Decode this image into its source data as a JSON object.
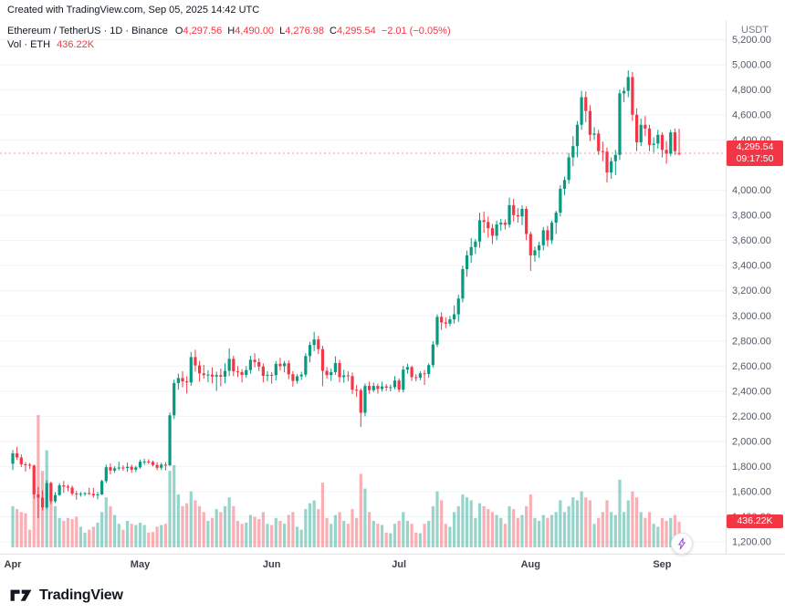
{
  "attribution": "Created with TradingView.com, Sep 05, 2025 14:42 UTC",
  "legend": {
    "title": "Ethereum / TetherUS · 1D · Binance",
    "o_label": "O",
    "o": "4,297.56",
    "h_label": "H",
    "h": "4,490.00",
    "l_label": "L",
    "l": "4,276.98",
    "c_label": "C",
    "c": "4,295.54",
    "change": "−2.01 (−0.05%)",
    "vol_label": "Vol · ETH",
    "vol_value": "436.22K"
  },
  "axis": {
    "currency": "USDT"
  },
  "badges": {
    "price": "4,295.54",
    "countdown": "09:17:50",
    "volume": "436.22K"
  },
  "footer": {
    "brand": "TradingView"
  },
  "colors": {
    "up": "#089981",
    "down": "#F23645",
    "vol_up": "rgba(8,153,129,0.42)",
    "vol_down": "rgba(242,54,69,0.40)"
  },
  "chart_data": {
    "type": "candlestick",
    "symbol": "Ethereum / TetherUS",
    "exchange": "Binance",
    "interval": "1D",
    "ylabel": "USDT",
    "ylim": [
      1150,
      5230
    ],
    "last": {
      "open": 4297.56,
      "high": 4490.0,
      "low": 4276.98,
      "close": 4295.54,
      "change": -2.01,
      "change_pct": -0.05,
      "volume_k": 436.22,
      "countdown": "09:17:50"
    },
    "price_ticks": [
      {
        "v": 5200,
        "label": "5,200.00"
      },
      {
        "v": 5000,
        "label": "5,000.00"
      },
      {
        "v": 4800,
        "label": "4,800.00"
      },
      {
        "v": 4600,
        "label": "4,600.00"
      },
      {
        "v": 4400,
        "label": "4,400.00"
      },
      {
        "v": 4000,
        "label": "4,000.00"
      },
      {
        "v": 3800,
        "label": "3,800.00"
      },
      {
        "v": 3600,
        "label": "3,600.00"
      },
      {
        "v": 3400,
        "label": "3,400.00"
      },
      {
        "v": 3200,
        "label": "3,200.00"
      },
      {
        "v": 3000,
        "label": "3,000.00"
      },
      {
        "v": 2800,
        "label": "2,800.00"
      },
      {
        "v": 2600,
        "label": "2,600.00"
      },
      {
        "v": 2400,
        "label": "2,400.00"
      },
      {
        "v": 2200,
        "label": "2,200.00"
      },
      {
        "v": 2000,
        "label": "2,000.00"
      },
      {
        "v": 1800,
        "label": "1,800.00"
      },
      {
        "v": 1600,
        "label": "1,600.00"
      },
      {
        "v": 1400,
        "label": "1,400.00"
      },
      {
        "v": 1200,
        "label": "1,200.00"
      }
    ],
    "months": [
      {
        "label": "Apr",
        "i": 0
      },
      {
        "label": "May",
        "i": 30
      },
      {
        "label": "Jun",
        "i": 61
      },
      {
        "label": "Jul",
        "i": 91
      },
      {
        "label": "Aug",
        "i": 122
      },
      {
        "label": "Sep",
        "i": 153
      }
    ],
    "volume_unit": "K",
    "candles": [
      [
        "04-01",
        1822,
        1930,
        1772,
        1905,
        700
      ],
      [
        "04-02",
        1905,
        1957,
        1852,
        1872,
        650
      ],
      [
        "04-03",
        1872,
        1898,
        1795,
        1818,
        600
      ],
      [
        "04-04",
        1818,
        1835,
        1760,
        1815,
        580
      ],
      [
        "04-05",
        1815,
        1828,
        1780,
        1808,
        300
      ],
      [
        "04-06",
        1808,
        1815,
        1545,
        1578,
        1200
      ],
      [
        "04-07",
        1578,
        1638,
        1390,
        1552,
        2250
      ],
      [
        "04-08",
        1552,
        1610,
        1452,
        1475,
        1300
      ],
      [
        "04-09",
        1475,
        1690,
        1460,
        1668,
        1650
      ],
      [
        "04-10",
        1668,
        1680,
        1500,
        1523,
        1100
      ],
      [
        "04-11",
        1523,
        1596,
        1510,
        1573,
        700
      ],
      [
        "04-12",
        1573,
        1668,
        1566,
        1650,
        500
      ],
      [
        "04-13",
        1650,
        1685,
        1590,
        1641,
        450
      ],
      [
        "04-14",
        1641,
        1656,
        1602,
        1632,
        500
      ],
      [
        "04-15",
        1632,
        1648,
        1568,
        1584,
        480
      ],
      [
        "04-16",
        1584,
        1605,
        1536,
        1577,
        520
      ],
      [
        "04-17",
        1577,
        1598,
        1560,
        1583,
        350
      ],
      [
        "04-18",
        1583,
        1596,
        1566,
        1588,
        250
      ],
      [
        "04-19",
        1588,
        1632,
        1574,
        1582,
        300
      ],
      [
        "04-20",
        1582,
        1630,
        1552,
        1570,
        350
      ],
      [
        "04-21",
        1570,
        1597,
        1540,
        1578,
        420
      ],
      [
        "04-22",
        1578,
        1695,
        1572,
        1684,
        600
      ],
      [
        "04-23",
        1684,
        1815,
        1668,
        1795,
        850
      ],
      [
        "04-24",
        1795,
        1824,
        1738,
        1768,
        700
      ],
      [
        "04-25",
        1768,
        1802,
        1750,
        1786,
        550
      ],
      [
        "04-26",
        1786,
        1838,
        1770,
        1792,
        400
      ],
      [
        "04-27",
        1792,
        1810,
        1765,
        1788,
        300
      ],
      [
        "04-28",
        1788,
        1832,
        1758,
        1798,
        450
      ],
      [
        "04-29",
        1798,
        1815,
        1750,
        1775,
        400
      ],
      [
        "04-30",
        1775,
        1806,
        1755,
        1793,
        380
      ],
      [
        "05-01",
        1793,
        1855,
        1782,
        1838,
        420
      ],
      [
        "05-02",
        1838,
        1862,
        1815,
        1840,
        380
      ],
      [
        "05-03",
        1840,
        1858,
        1820,
        1836,
        250
      ],
      [
        "05-04",
        1836,
        1848,
        1800,
        1812,
        260
      ],
      [
        "05-05",
        1812,
        1834,
        1770,
        1790,
        350
      ],
      [
        "05-06",
        1790,
        1830,
        1772,
        1815,
        380
      ],
      [
        "05-07",
        1815,
        1836,
        1768,
        1810,
        400
      ],
      [
        "05-08",
        1810,
        2230,
        1802,
        2208,
        1300
      ],
      [
        "05-09",
        2208,
        2492,
        2180,
        2465,
        1400
      ],
      [
        "05-10",
        2465,
        2540,
        2412,
        2505,
        900
      ],
      [
        "05-11",
        2505,
        2560,
        2432,
        2478,
        700
      ],
      [
        "05-12",
        2478,
        2520,
        2382,
        2470,
        750
      ],
      [
        "05-13",
        2470,
        2712,
        2442,
        2672,
        950
      ],
      [
        "05-14",
        2672,
        2730,
        2556,
        2605,
        800
      ],
      [
        "05-15",
        2605,
        2642,
        2476,
        2542,
        700
      ],
      [
        "05-16",
        2542,
        2610,
        2500,
        2528,
        600
      ],
      [
        "05-17",
        2528,
        2566,
        2472,
        2532,
        450
      ],
      [
        "05-18",
        2532,
        2590,
        2462,
        2516,
        500
      ],
      [
        "05-19",
        2516,
        2556,
        2402,
        2528,
        650
      ],
      [
        "05-20",
        2528,
        2580,
        2438,
        2516,
        600
      ],
      [
        "05-21",
        2516,
        2622,
        2462,
        2562,
        700
      ],
      [
        "05-22",
        2562,
        2742,
        2520,
        2658,
        850
      ],
      [
        "05-23",
        2658,
        2682,
        2520,
        2558,
        700
      ],
      [
        "05-24",
        2558,
        2600,
        2512,
        2552,
        450
      ],
      [
        "05-25",
        2552,
        2576,
        2470,
        2530,
        400
      ],
      [
        "05-26",
        2530,
        2600,
        2506,
        2568,
        420
      ],
      [
        "05-27",
        2568,
        2682,
        2540,
        2650,
        550
      ],
      [
        "05-28",
        2650,
        2702,
        2590,
        2632,
        520
      ],
      [
        "05-29",
        2632,
        2662,
        2560,
        2596,
        480
      ],
      [
        "05-30",
        2596,
        2622,
        2470,
        2522,
        600
      ],
      [
        "05-31",
        2522,
        2560,
        2480,
        2530,
        400
      ],
      [
        "06-01",
        2530,
        2552,
        2460,
        2528,
        380
      ],
      [
        "06-02",
        2528,
        2640,
        2486,
        2618,
        500
      ],
      [
        "06-03",
        2618,
        2665,
        2565,
        2600,
        450
      ],
      [
        "06-04",
        2600,
        2642,
        2550,
        2622,
        400
      ],
      [
        "06-05",
        2622,
        2645,
        2496,
        2535,
        550
      ],
      [
        "06-06",
        2535,
        2560,
        2436,
        2482,
        600
      ],
      [
        "06-07",
        2482,
        2535,
        2460,
        2518,
        350
      ],
      [
        "06-08",
        2518,
        2555,
        2490,
        2532,
        300
      ],
      [
        "06-09",
        2532,
        2702,
        2512,
        2680,
        650
      ],
      [
        "06-10",
        2680,
        2792,
        2630,
        2768,
        750
      ],
      [
        "06-11",
        2768,
        2873,
        2720,
        2812,
        800
      ],
      [
        "06-12",
        2812,
        2840,
        2696,
        2735,
        650
      ],
      [
        "06-13",
        2735,
        2762,
        2440,
        2562,
        1100
      ],
      [
        "06-14",
        2562,
        2592,
        2500,
        2528,
        500
      ],
      [
        "06-15",
        2528,
        2580,
        2482,
        2552,
        400
      ],
      [
        "06-16",
        2552,
        2678,
        2530,
        2624,
        550
      ],
      [
        "06-17",
        2624,
        2650,
        2470,
        2512,
        600
      ],
      [
        "06-18",
        2512,
        2570,
        2468,
        2526,
        450
      ],
      [
        "06-19",
        2526,
        2558,
        2480,
        2520,
        400
      ],
      [
        "06-20",
        2520,
        2548,
        2378,
        2412,
        650
      ],
      [
        "06-21",
        2412,
        2448,
        2355,
        2408,
        500
      ],
      [
        "06-22",
        2408,
        2422,
        2115,
        2228,
        1250
      ],
      [
        "06-23",
        2228,
        2462,
        2200,
        2442,
        1000
      ],
      [
        "06-24",
        2442,
        2476,
        2380,
        2408,
        600
      ],
      [
        "06-25",
        2408,
        2468,
        2392,
        2442,
        450
      ],
      [
        "06-26",
        2442,
        2460,
        2380,
        2418,
        400
      ],
      [
        "06-27",
        2418,
        2476,
        2398,
        2438,
        380
      ],
      [
        "06-28",
        2438,
        2456,
        2402,
        2428,
        250
      ],
      [
        "06-29",
        2428,
        2452,
        2398,
        2432,
        240
      ],
      [
        "06-30",
        2432,
        2520,
        2415,
        2485,
        400
      ],
      [
        "07-01",
        2485,
        2502,
        2392,
        2412,
        450
      ],
      [
        "07-02",
        2412,
        2602,
        2390,
        2572,
        600
      ],
      [
        "07-03",
        2572,
        2618,
        2540,
        2592,
        450
      ],
      [
        "07-04",
        2592,
        2604,
        2482,
        2512,
        400
      ],
      [
        "07-05",
        2512,
        2536,
        2478,
        2508,
        250
      ],
      [
        "07-06",
        2508,
        2558,
        2488,
        2542,
        240
      ],
      [
        "07-07",
        2542,
        2568,
        2450,
        2538,
        400
      ],
      [
        "07-08",
        2538,
        2622,
        2508,
        2608,
        450
      ],
      [
        "07-09",
        2608,
        2798,
        2588,
        2772,
        700
      ],
      [
        "07-10",
        2772,
        3012,
        2752,
        2992,
        950
      ],
      [
        "07-11",
        2992,
        3028,
        2888,
        2948,
        800
      ],
      [
        "07-12",
        2948,
        2988,
        2902,
        2938,
        400
      ],
      [
        "07-13",
        2938,
        2998,
        2918,
        2972,
        350
      ],
      [
        "07-14",
        2972,
        3082,
        2938,
        3012,
        600
      ],
      [
        "07-15",
        3012,
        3168,
        2952,
        3138,
        700
      ],
      [
        "07-16",
        3138,
        3400,
        3108,
        3372,
        900
      ],
      [
        "07-17",
        3372,
        3520,
        3312,
        3482,
        850
      ],
      [
        "07-18",
        3482,
        3620,
        3422,
        3548,
        800
      ],
      [
        "07-19",
        3548,
        3612,
        3492,
        3592,
        500
      ],
      [
        "07-20",
        3592,
        3822,
        3542,
        3762,
        750
      ],
      [
        "07-21",
        3762,
        3830,
        3662,
        3748,
        700
      ],
      [
        "07-22",
        3748,
        3790,
        3622,
        3698,
        650
      ],
      [
        "07-23",
        3698,
        3732,
        3572,
        3638,
        600
      ],
      [
        "07-24",
        3638,
        3760,
        3602,
        3728,
        550
      ],
      [
        "07-25",
        3728,
        3772,
        3678,
        3742,
        500
      ],
      [
        "07-26",
        3742,
        3768,
        3688,
        3726,
        400
      ],
      [
        "07-27",
        3726,
        3942,
        3702,
        3882,
        700
      ],
      [
        "07-28",
        3882,
        3932,
        3752,
        3802,
        650
      ],
      [
        "07-29",
        3802,
        3858,
        3742,
        3792,
        500
      ],
      [
        "07-30",
        3792,
        3880,
        3722,
        3852,
        550
      ],
      [
        "07-31",
        3852,
        3872,
        3602,
        3652,
        700
      ],
      [
        "08-01",
        3652,
        3672,
        3358,
        3482,
        900
      ],
      [
        "08-02",
        3482,
        3552,
        3432,
        3522,
        500
      ],
      [
        "08-03",
        3522,
        3590,
        3462,
        3562,
        450
      ],
      [
        "08-04",
        3562,
        3708,
        3522,
        3682,
        550
      ],
      [
        "08-05",
        3682,
        3718,
        3552,
        3602,
        500
      ],
      [
        "08-06",
        3602,
        3758,
        3572,
        3742,
        550
      ],
      [
        "08-07",
        3742,
        3838,
        3652,
        3822,
        600
      ],
      [
        "08-08",
        3822,
        4042,
        3792,
        4012,
        800
      ],
      [
        "08-09",
        4012,
        4108,
        3962,
        4082,
        600
      ],
      [
        "08-10",
        4082,
        4298,
        4052,
        4262,
        700
      ],
      [
        "08-11",
        4262,
        4432,
        4192,
        4352,
        850
      ],
      [
        "08-12",
        4352,
        4552,
        4262,
        4522,
        800
      ],
      [
        "08-13",
        4522,
        4792,
        4482,
        4742,
        950
      ],
      [
        "08-14",
        4742,
        4788,
        4542,
        4632,
        850
      ],
      [
        "08-15",
        4632,
        4678,
        4392,
        4442,
        800
      ],
      [
        "08-16",
        4442,
        4502,
        4402,
        4452,
        400
      ],
      [
        "08-17",
        4452,
        4482,
        4282,
        4312,
        500
      ],
      [
        "08-18",
        4312,
        4388,
        4232,
        4308,
        600
      ],
      [
        "08-19",
        4308,
        4342,
        4062,
        4142,
        800
      ],
      [
        "08-20",
        4142,
        4262,
        4092,
        4232,
        600
      ],
      [
        "08-21",
        4232,
        4322,
        4122,
        4282,
        550
      ],
      [
        "08-22",
        4282,
        4802,
        4242,
        4772,
        1150
      ],
      [
        "08-23",
        4772,
        4822,
        4702,
        4792,
        600
      ],
      [
        "08-24",
        4792,
        4956,
        4742,
        4902,
        800
      ],
      [
        "08-25",
        4902,
        4942,
        4552,
        4602,
        950
      ],
      [
        "08-26",
        4602,
        4652,
        4312,
        4382,
        850
      ],
      [
        "08-27",
        4382,
        4572,
        4352,
        4522,
        600
      ],
      [
        "08-28",
        4522,
        4592,
        4432,
        4492,
        500
      ],
      [
        "08-29",
        4492,
        4522,
        4312,
        4362,
        600
      ],
      [
        "08-30",
        4362,
        4422,
        4302,
        4372,
        400
      ],
      [
        "08-31",
        4372,
        4482,
        4332,
        4442,
        350
      ],
      [
        "09-01",
        4442,
        4462,
        4262,
        4322,
        500
      ],
      [
        "09-02",
        4322,
        4392,
        4212,
        4292,
        450
      ],
      [
        "09-03",
        4292,
        4482,
        4272,
        4462,
        500
      ],
      [
        "09-04",
        4462,
        4492,
        4282,
        4312,
        550
      ],
      [
        "09-05",
        4297.56,
        4490,
        4276.98,
        4295.54,
        436.22
      ]
    ]
  }
}
